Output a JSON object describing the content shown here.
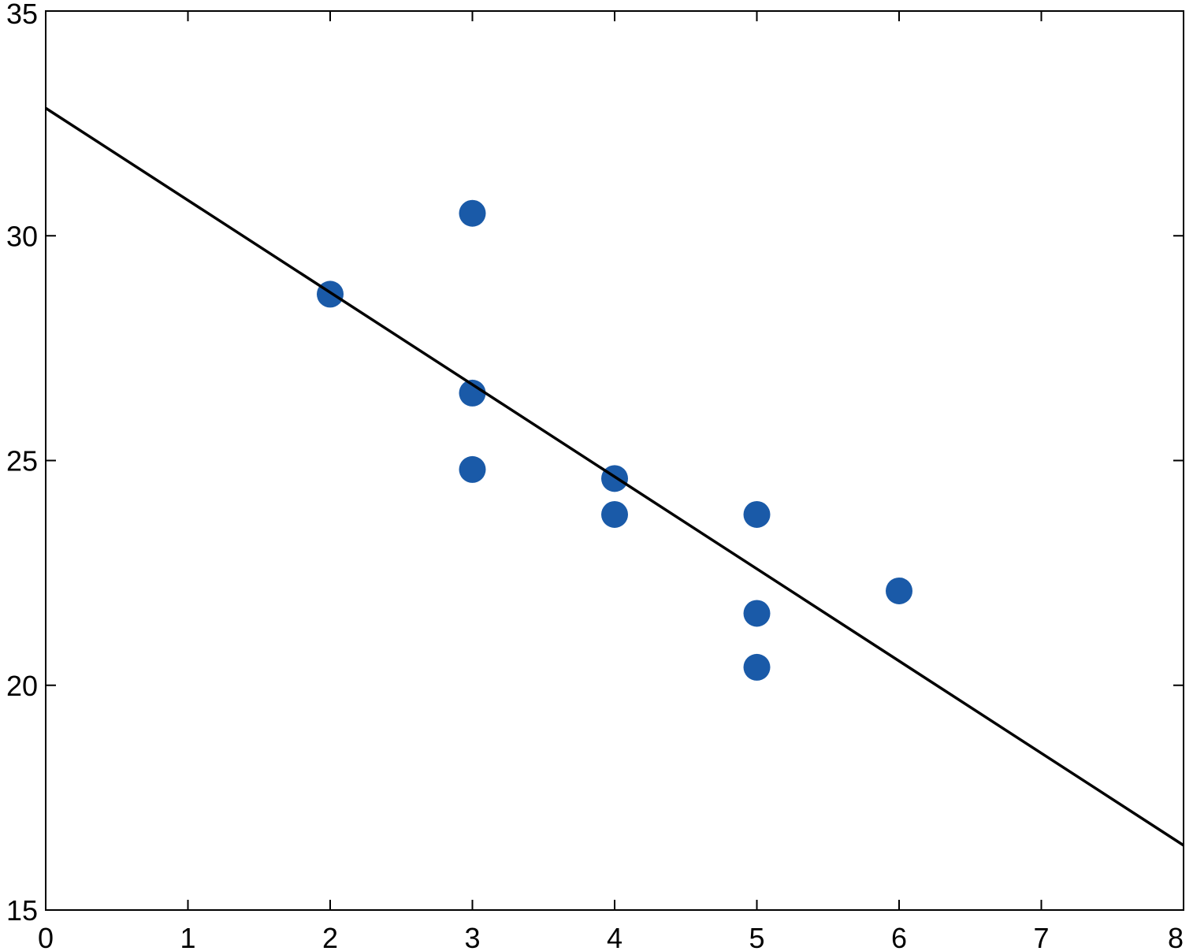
{
  "chart_data": {
    "type": "scatter",
    "series": [
      {
        "color": "#1a5aa8",
        "x": [
          2,
          3,
          3,
          3,
          4,
          4,
          5,
          5,
          5,
          6
        ],
        "values": [
          28.7,
          30.5,
          26.5,
          24.8,
          24.6,
          23.8,
          23.8,
          21.6,
          20.4,
          22.1
        ]
      },
      {
        "type": "line",
        "color": "#000000",
        "x": [
          0,
          8
        ],
        "values": [
          32.84,
          16.44
        ]
      }
    ],
    "xlim": [
      0,
      8
    ],
    "xticks": [
      0,
      1,
      2,
      3,
      4,
      5,
      6,
      7,
      8
    ],
    "ylim": [
      15,
      35
    ],
    "yticks": [
      15,
      20,
      25,
      30,
      35
    ],
    "grid": false
  }
}
